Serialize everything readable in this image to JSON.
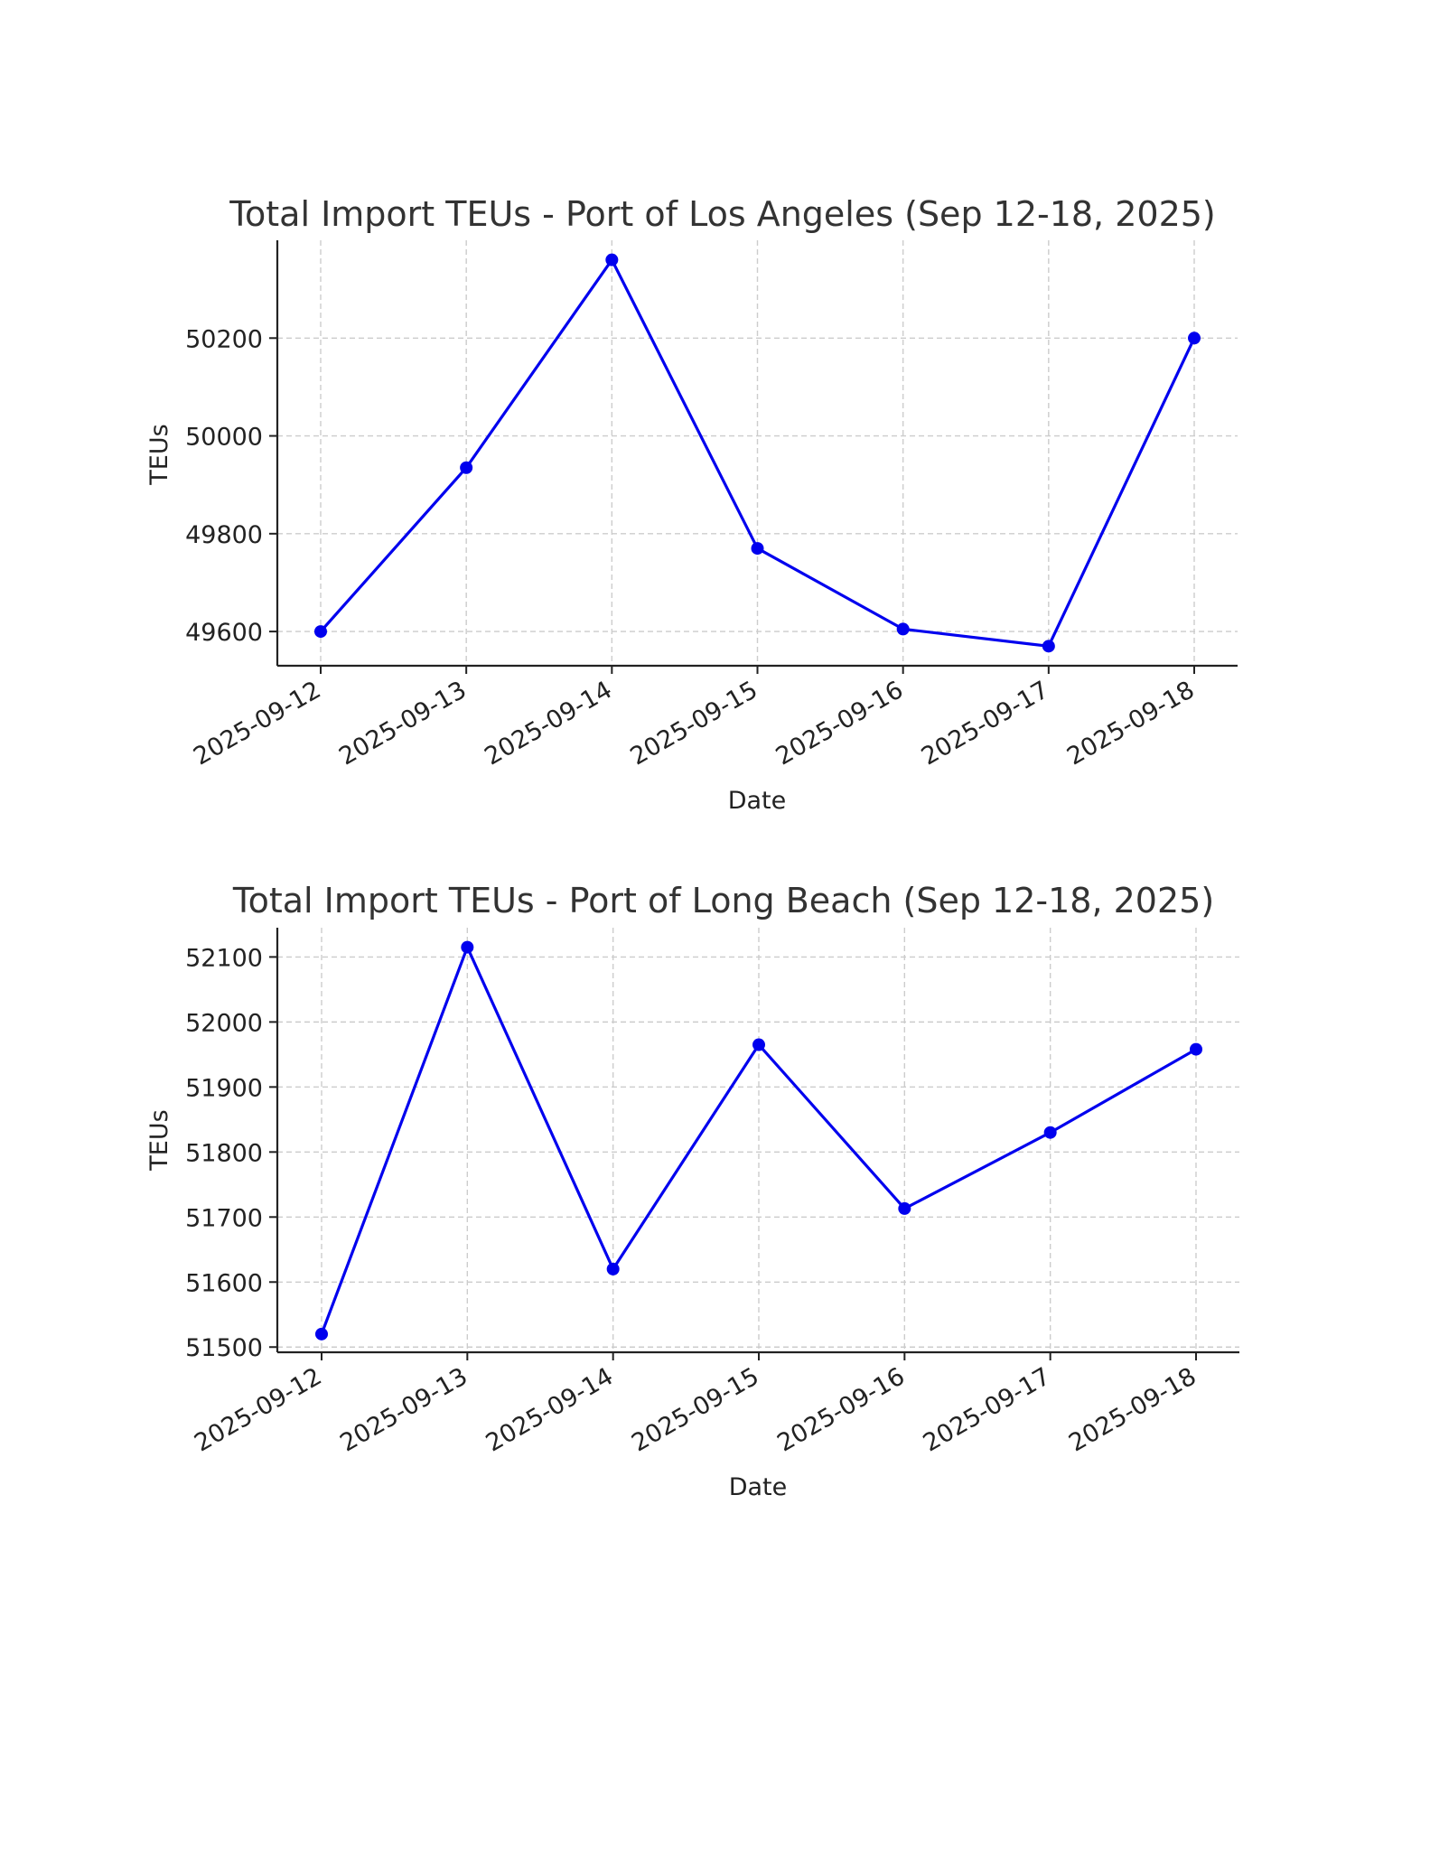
{
  "chart_data": [
    {
      "type": "line",
      "title": "Total Import TEUs - Port of Los Angeles (Sep 12-18, 2025)",
      "xlabel": "Date",
      "ylabel": "TEUs",
      "categories": [
        "2025-09-12",
        "2025-09-13",
        "2025-09-14",
        "2025-09-15",
        "2025-09-16",
        "2025-09-17",
        "2025-09-18"
      ],
      "series": [
        {
          "values": [
            49600,
            49935,
            50360,
            49770,
            49605,
            49570,
            50200
          ]
        }
      ],
      "yticks": [
        "49600",
        "49800",
        "50000",
        "50200"
      ],
      "ylim": [
        49530,
        50400
      ],
      "grid": true,
      "colors": {
        "line": "#0000ee"
      }
    },
    {
      "type": "line",
      "title": "Total Import TEUs - Port of Long Beach (Sep 12-18, 2025)",
      "xlabel": "Date",
      "ylabel": "TEUs",
      "categories": [
        "2025-09-12",
        "2025-09-13",
        "2025-09-14",
        "2025-09-15",
        "2025-09-16",
        "2025-09-17",
        "2025-09-18"
      ],
      "series": [
        {
          "values": [
            51520,
            52115,
            51620,
            51965,
            51713,
            51830,
            51958
          ]
        }
      ],
      "yticks": [
        "51500",
        "51600",
        "51700",
        "51800",
        "51900",
        "52000",
        "52100"
      ],
      "ylim": [
        51492,
        52145
      ],
      "grid": true,
      "colors": {
        "line": "#0000ee"
      }
    }
  ]
}
